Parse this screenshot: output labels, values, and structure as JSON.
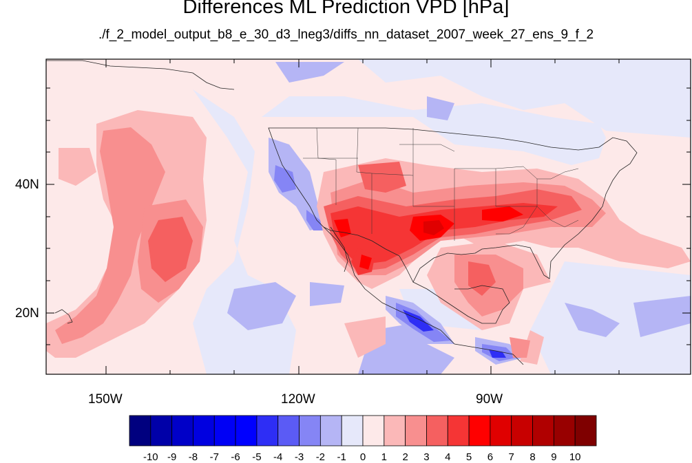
{
  "title": "Differences ML Prediction VPD [hPa]",
  "subtitle": "./f_2_model_output_b8_e_30_d3_lneg3/diffs_nn_dataset_2007_week_27_ens_9_f_2",
  "axes": {
    "lat_labels": [
      "40N",
      "20N"
    ],
    "lon_labels": [
      "150W",
      "120W",
      "90W"
    ]
  },
  "colorbar": {
    "labels": [
      "-10",
      "-9",
      "-8",
      "-7",
      "-6",
      "-5",
      "-4",
      "-3",
      "-2",
      "-1",
      "0",
      "1",
      "2",
      "3",
      "4",
      "5",
      "6",
      "7",
      "8",
      "9",
      "10"
    ],
    "colors": [
      "#00007f",
      "#0000a8",
      "#0000c8",
      "#0000e0",
      "#0000f5",
      "#0000ff",
      "#2e2ef5",
      "#5b5bf5",
      "#8585f5",
      "#b5b5f5",
      "#e6e8fa",
      "#fde9e9",
      "#fbb8b8",
      "#f88f8f",
      "#f56060",
      "#f53535",
      "#ff0000",
      "#e00000",
      "#c80000",
      "#b00000",
      "#980000",
      "#7f0000"
    ]
  }
}
